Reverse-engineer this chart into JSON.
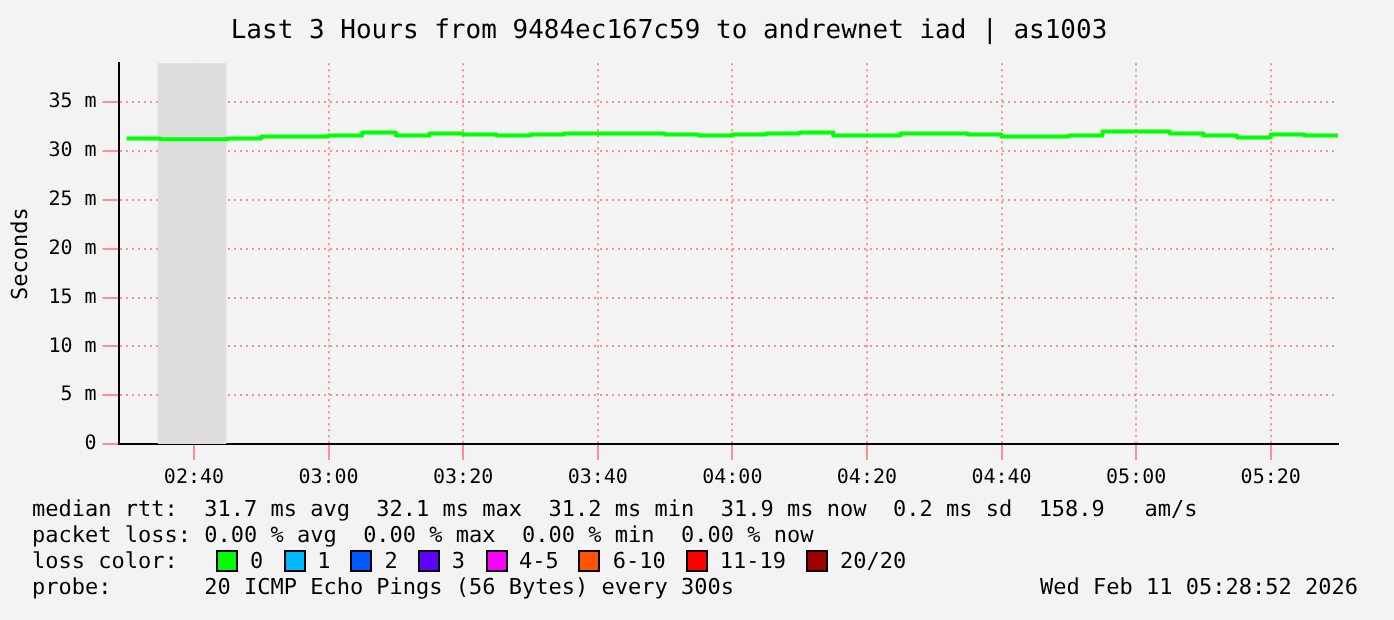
{
  "chart_data": {
    "type": "step",
    "title": "Last 3 Hours from 9484ec167c59 to andrewnet iad | as1003",
    "ylabel": "Seconds",
    "x": [
      2.5,
      2.5833,
      2.6667,
      2.75,
      2.8333,
      2.9167,
      3,
      3.0833,
      3.1667,
      3.25,
      3.3333,
      3.4167,
      3.5,
      3.5833,
      3.6667,
      3.75,
      3.8333,
      3.9167,
      4,
      4.0833,
      4.1667,
      4.25,
      4.3333,
      4.4167,
      4.5,
      4.5833,
      4.6667,
      4.75,
      4.8333,
      4.9167,
      5,
      5.0833,
      5.1667,
      5.25,
      5.3333,
      5.4167,
      5.5
    ],
    "series": [
      {
        "color": "#00ff00",
        "values": [
          31.3,
          31.2,
          31.2,
          31.3,
          31.5,
          31.5,
          31.6,
          31.9,
          31.6,
          31.8,
          31.7,
          31.6,
          31.7,
          31.8,
          31.8,
          31.8,
          31.7,
          31.6,
          31.7,
          31.8,
          31.9,
          31.6,
          31.6,
          31.8,
          31.8,
          31.7,
          31.5,
          31.5,
          31.6,
          32.0,
          32.0,
          31.8,
          31.6,
          31.4,
          31.7,
          31.6,
          31.8
        ]
      }
    ],
    "xlim": [
      2.48,
      5.5
    ],
    "xticks": [
      {
        "value": 2.6667,
        "label": "02:40"
      },
      {
        "value": 3,
        "label": "03:00"
      },
      {
        "value": 3.3333,
        "label": "03:20"
      },
      {
        "value": 3.6667,
        "label": "03:40"
      },
      {
        "value": 4,
        "label": "04:00"
      },
      {
        "value": 4.3333,
        "label": "04:20"
      },
      {
        "value": 4.6667,
        "label": "04:40"
      },
      {
        "value": 5,
        "label": "05:00"
      },
      {
        "value": 5.3333,
        "label": "05:20"
      }
    ],
    "ylim": [
      0,
      39
    ],
    "yticks": [
      0,
      {
        "value": 5,
        "label": "5 m"
      },
      {
        "value": 10,
        "label": "10 m"
      },
      {
        "value": 15,
        "label": "15 m"
      },
      {
        "value": 20,
        "label": "20 m"
      },
      {
        "value": 25,
        "label": "25 m"
      },
      {
        "value": 30,
        "label": "30 m"
      },
      {
        "value": 35,
        "label": "35 m"
      }
    ],
    "grid": true,
    "bands": [
      {
        "axis": "x",
        "from": 2.577,
        "to": 2.747,
        "color": "#dddddd"
      }
    ],
    "annotations": [
      "median rtt:  31.7 ms avg  32.1 ms max  31.2 ms min  31.9 ms now  0.2 ms sd  158.9   am/s",
      "packet loss: 0.00 % avg  0.00 % max  0.00 % min  0.00 % now",
      "loss color:",
      "0",
      "1",
      "2",
      "3",
      "4-5",
      "6-10",
      "11-19",
      "20/20",
      "probe:       20 ICMP Echo Pings (56 Bytes) every 300s",
      "Wed Feb 11 05:28:52 2026"
    ]
  }
}
